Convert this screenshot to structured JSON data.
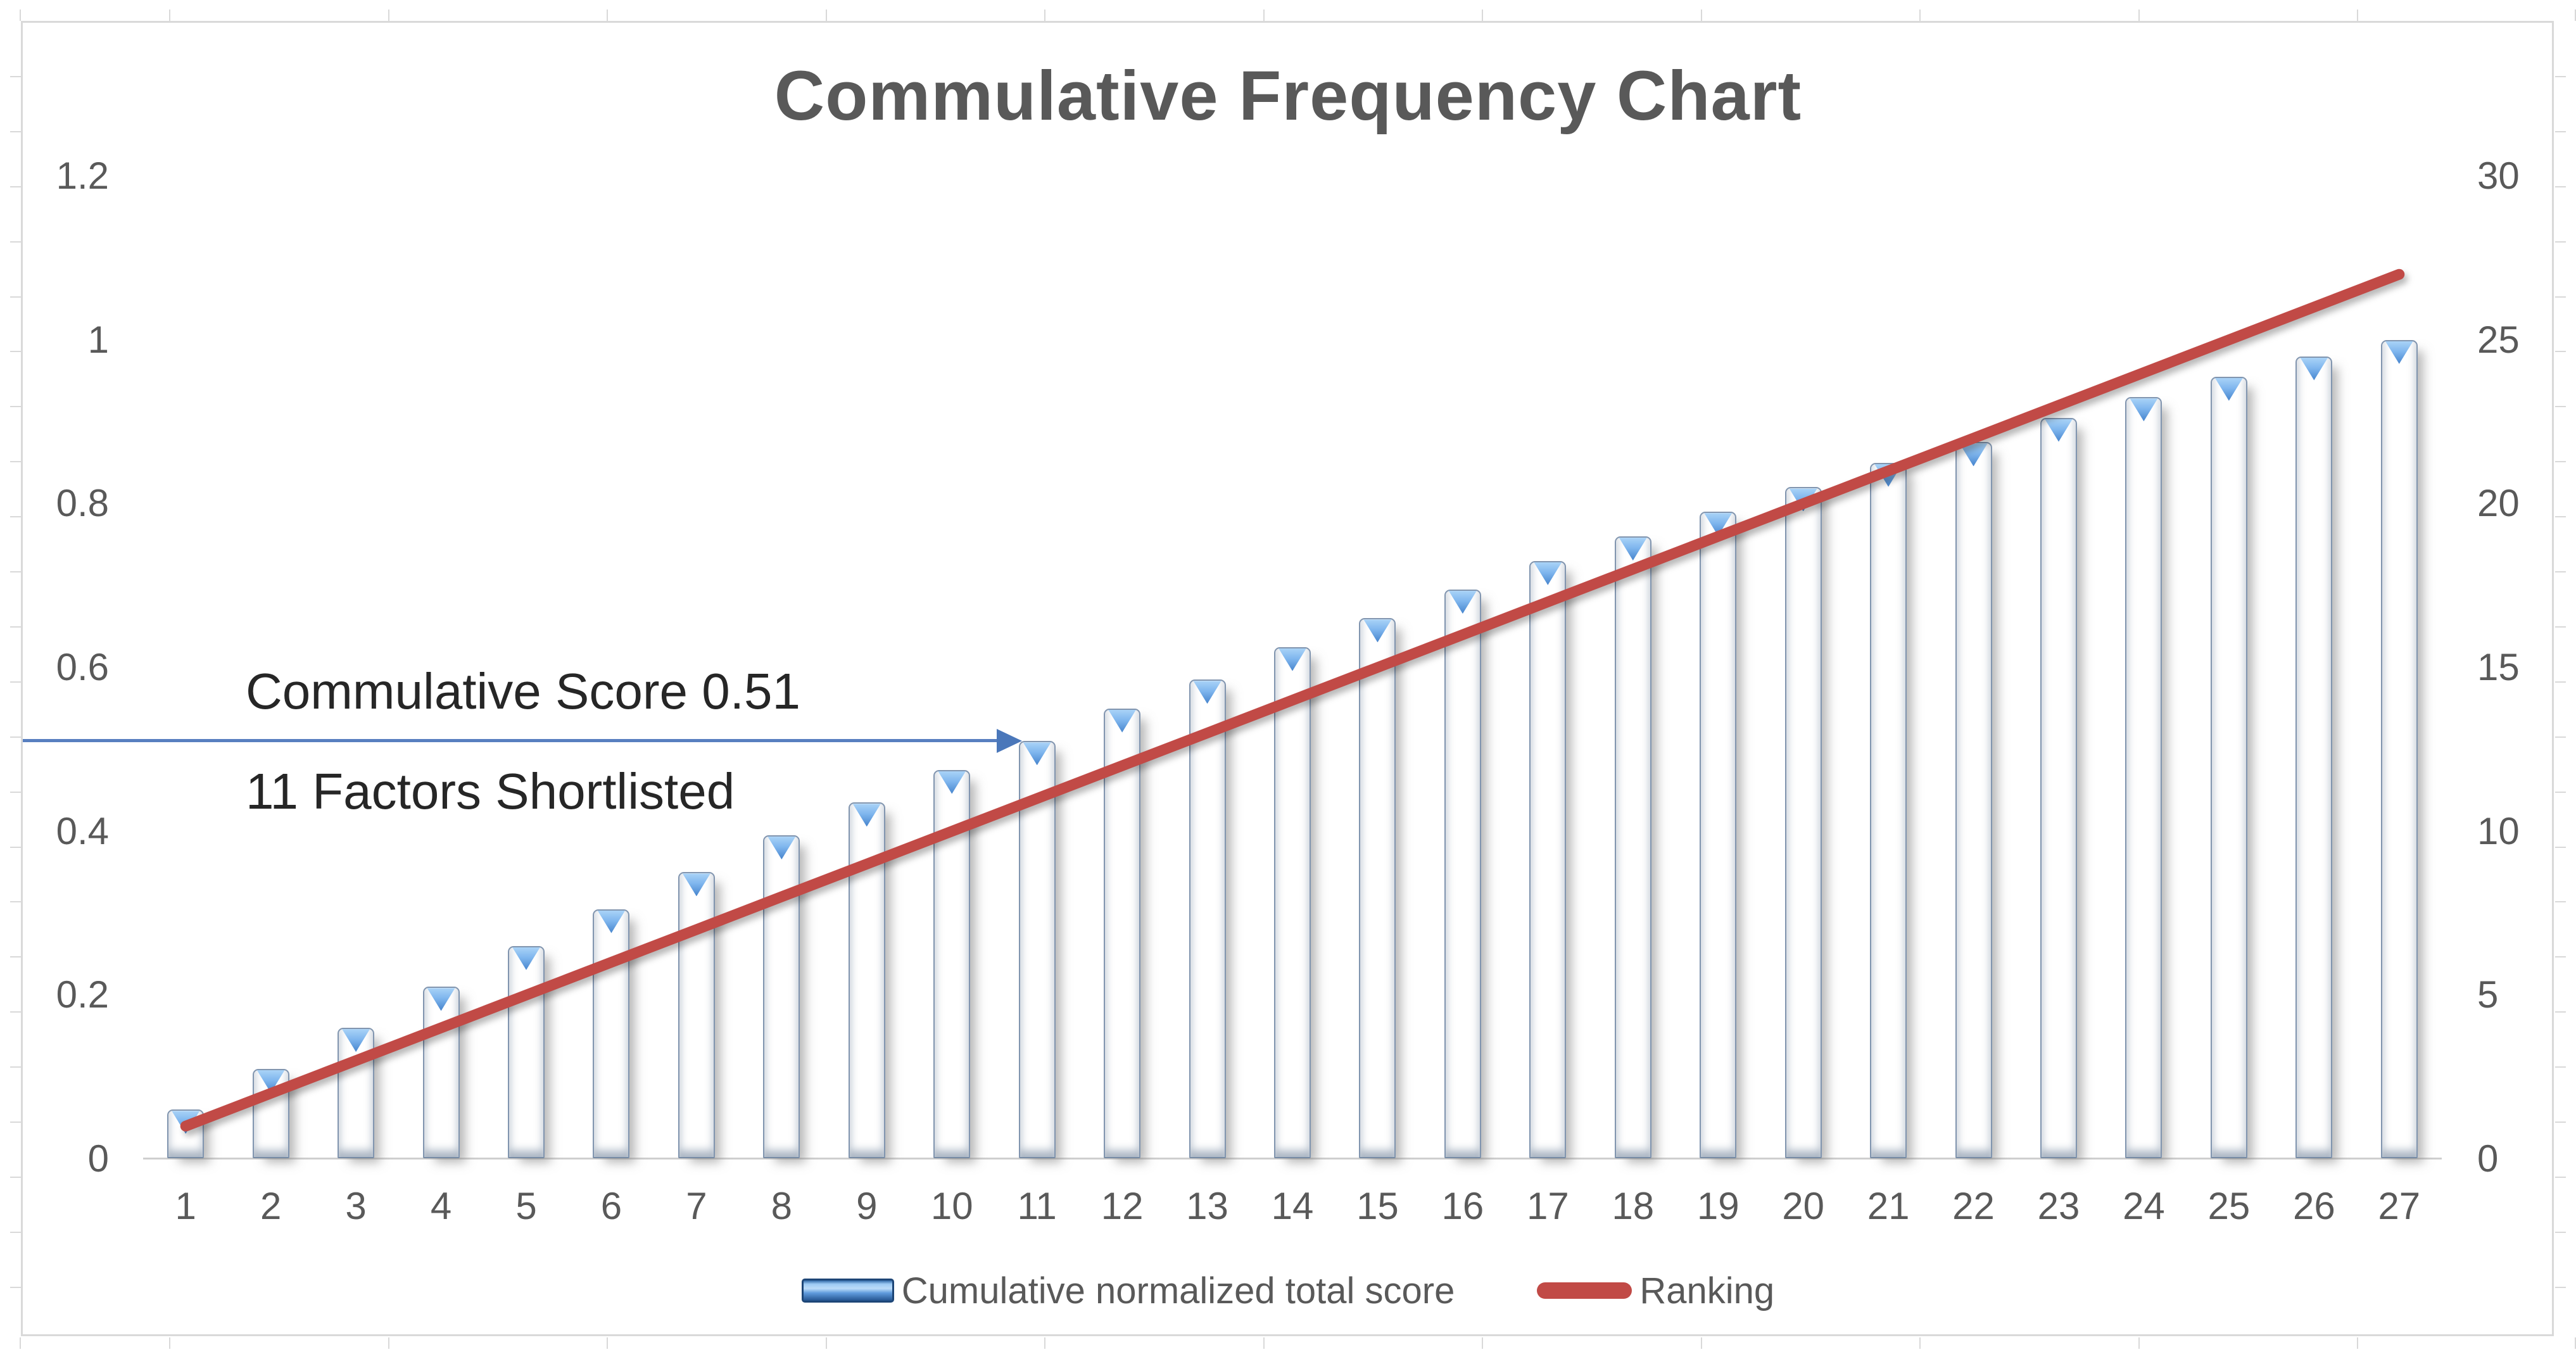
{
  "chart_data": {
    "type": "bar",
    "combo": "bar+line",
    "title": "Commulative Frequency Chart",
    "categories": [
      "1",
      "2",
      "3",
      "4",
      "5",
      "6",
      "7",
      "8",
      "9",
      "10",
      "11",
      "12",
      "13",
      "14",
      "15",
      "16",
      "17",
      "18",
      "19",
      "20",
      "21",
      "22",
      "23",
      "24",
      "25",
      "26",
      "27"
    ],
    "series": [
      {
        "name": "Cumulative normalized total score",
        "type": "bar",
        "axis": "left",
        "color": "#3c78c2",
        "values": [
          0.06,
          0.11,
          0.16,
          0.21,
          0.26,
          0.305,
          0.35,
          0.395,
          0.435,
          0.475,
          0.51,
          0.55,
          0.585,
          0.625,
          0.66,
          0.695,
          0.73,
          0.76,
          0.79,
          0.82,
          0.85,
          0.875,
          0.905,
          0.93,
          0.955,
          0.98,
          1.0
        ]
      },
      {
        "name": "Ranking",
        "type": "line",
        "axis": "right",
        "color": "#c14a46",
        "values": [
          1,
          2,
          3,
          4,
          5,
          6,
          7,
          8,
          9,
          10,
          11,
          12,
          13,
          14,
          15,
          16,
          17,
          18,
          19,
          20,
          21,
          22,
          23,
          24,
          25,
          26,
          27
        ]
      }
    ],
    "left_axis": {
      "range": [
        0,
        1.2
      ],
      "tick_values": [
        0,
        0.2,
        0.4,
        0.6,
        0.8,
        1,
        1.2
      ],
      "tick_labels": [
        "0",
        "0.2",
        "0.4",
        "0.6",
        "0.8",
        "1",
        "1.2"
      ]
    },
    "right_axis": {
      "range": [
        0,
        30
      ],
      "tick_values": [
        0,
        5,
        10,
        15,
        20,
        25,
        30
      ],
      "tick_labels": [
        "0",
        "5",
        "10",
        "15",
        "20",
        "25",
        "30"
      ]
    },
    "grid": false,
    "legend_position": "bottom",
    "annotation": {
      "text_line1": "Commulative Score 0.51",
      "text_line2": "11 Factors Shortlisted",
      "arrow_value": 0.51,
      "arrow_points_to_category": "11"
    }
  }
}
